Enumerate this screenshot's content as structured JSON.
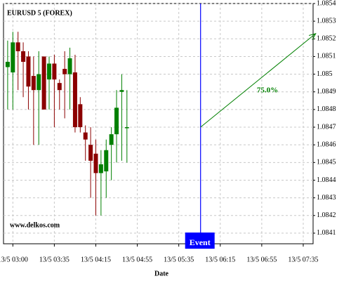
{
  "chart_data": {
    "type": "candlestick",
    "title": "EURUSD 5 (FOREX)",
    "watermark": "www.delkos.com",
    "x_label": "Date",
    "x": [
      0,
      1,
      2,
      3,
      4,
      5,
      6,
      7,
      8,
      9,
      10,
      11,
      12,
      13,
      14,
      15,
      16,
      17,
      18,
      19,
      20,
      21,
      22,
      23
    ],
    "open": [
      1.08504,
      1.08501,
      1.08518,
      1.08513,
      1.0851,
      1.08499,
      1.08491,
      1.0851,
      1.08497,
      1.08506,
      1.08495,
      1.08503,
      1.085,
      1.08501,
      1.08483,
      1.08467,
      1.0846,
      1.08455,
      1.08444,
      1.08445,
      1.0846,
      1.08466,
      1.0849,
      1.0847
    ],
    "high": [
      1.08519,
      1.08524,
      1.08524,
      1.08518,
      1.08513,
      1.0851,
      1.08513,
      1.0851,
      1.0851,
      1.08511,
      1.08497,
      1.08513,
      1.08515,
      1.08511,
      1.08487,
      1.08471,
      1.0847,
      1.08463,
      1.08457,
      1.08463,
      1.0847,
      1.08491,
      1.085,
      1.08491
    ],
    "low": [
      1.0848,
      1.0848,
      1.08491,
      1.08487,
      1.0848,
      1.0846,
      1.0846,
      1.0848,
      1.0848,
      1.0847,
      1.0848,
      1.08475,
      1.0848,
      1.08467,
      1.08467,
      1.08451,
      1.0843,
      1.0842,
      1.0842,
      1.0843,
      1.0844,
      1.0845,
      1.08451,
      1.0845
    ],
    "close": [
      1.08507,
      1.08518,
      1.08513,
      1.08507,
      1.08493,
      1.08491,
      1.085,
      1.0848,
      1.08506,
      1.08497,
      1.08491,
      1.085,
      1.08509,
      1.0847,
      1.0847,
      1.08463,
      1.08451,
      1.08444,
      1.08449,
      1.08457,
      1.08466,
      1.08481,
      1.08491,
      1.0847
    ],
    "up_color": "#008000",
    "down_color": "#8b0000",
    "xlim": [
      -0.8,
      58.9
    ],
    "ylim": [
      1.08404,
      1.0854
    ],
    "xticks": [
      {
        "value": 1,
        "label": "13/5 03:00"
      },
      {
        "value": 9,
        "label": "13/5 03:35"
      },
      {
        "value": 17,
        "label": "13/5 04:15"
      },
      {
        "value": 25,
        "label": "13/5 04:55"
      },
      {
        "value": 33,
        "label": "13/5 05:35"
      },
      {
        "value": 41,
        "label": "13/5 06:15"
      },
      {
        "value": 49,
        "label": "13/5 06:55"
      },
      {
        "value": 57,
        "label": "13/5 07:35"
      }
    ],
    "yticks": [
      1.0841,
      1.0842,
      1.0843,
      1.0844,
      1.0845,
      1.0846,
      1.0847,
      1.0848,
      1.0849,
      1.085,
      1.0851,
      1.0852,
      1.0853,
      1.0854
    ],
    "grid": true,
    "event": {
      "label": "Event",
      "x": 37.2,
      "color": "#0000ff"
    },
    "projection": {
      "label": "75.0%",
      "x": [
        37.2,
        59.4
      ],
      "y": [
        1.0847,
        1.08523
      ],
      "color": "#008000"
    }
  }
}
